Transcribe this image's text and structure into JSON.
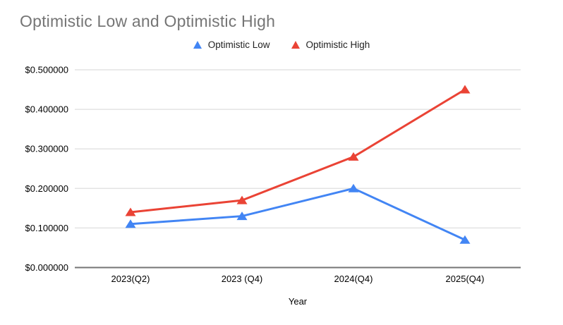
{
  "chart_data": {
    "type": "line",
    "title": "Optimistic Low and Optimistic High",
    "categories": [
      "2023(Q2)",
      "2023 (Q4)",
      "2024(Q4)",
      "2025(Q4)"
    ],
    "series": [
      {
        "name": "Optimistic Low",
        "color": "#4285F4",
        "marker": "triangle-up",
        "values": [
          0.11,
          0.13,
          0.2,
          0.07
        ]
      },
      {
        "name": "Optimistic High",
        "color": "#EA4335",
        "marker": "triangle-up",
        "values": [
          0.14,
          0.17,
          0.28,
          0.45
        ]
      }
    ],
    "xlabel": "Year",
    "ylabel": "",
    "ylim": [
      0,
      0.5
    ],
    "yticks": [
      {
        "value": 0.0,
        "label": "$0.000000"
      },
      {
        "value": 0.1,
        "label": "$0.100000"
      },
      {
        "value": 0.2,
        "label": "$0.200000"
      },
      {
        "value": 0.3,
        "label": "$0.300000"
      },
      {
        "value": 0.4,
        "label": "$0.400000"
      },
      {
        "value": 0.5,
        "label": "$0.500000"
      }
    ],
    "grid": true,
    "legend_position": "top",
    "colors": {
      "title_text": "#757575",
      "axis_text": "#000000",
      "legend_text": "#222222",
      "gridline": "#e3e3e3",
      "axis_line": "#757575",
      "background": "#ffffff"
    }
  }
}
